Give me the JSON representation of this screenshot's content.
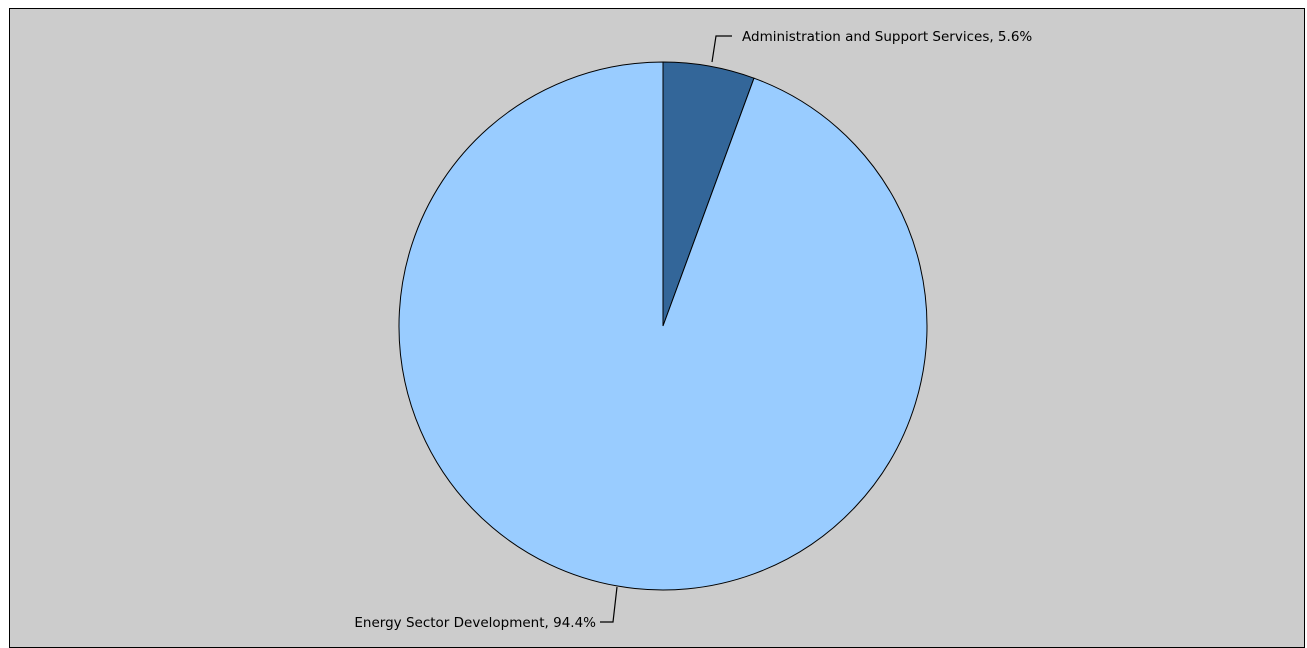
{
  "chart_data": {
    "type": "pie",
    "title": "",
    "series": [
      {
        "name": "Administration and Support Services",
        "value": 5.6,
        "label": "Administration and Support Services, 5.6%",
        "color": "#336699"
      },
      {
        "name": "Energy Sector Development",
        "value": 94.4,
        "label": "Energy Sector Development, 94.4%",
        "color": "#99ccff"
      }
    ],
    "start_angle": "top, clockwise",
    "background_color": "#cccccc",
    "outline_color": "#000000"
  }
}
